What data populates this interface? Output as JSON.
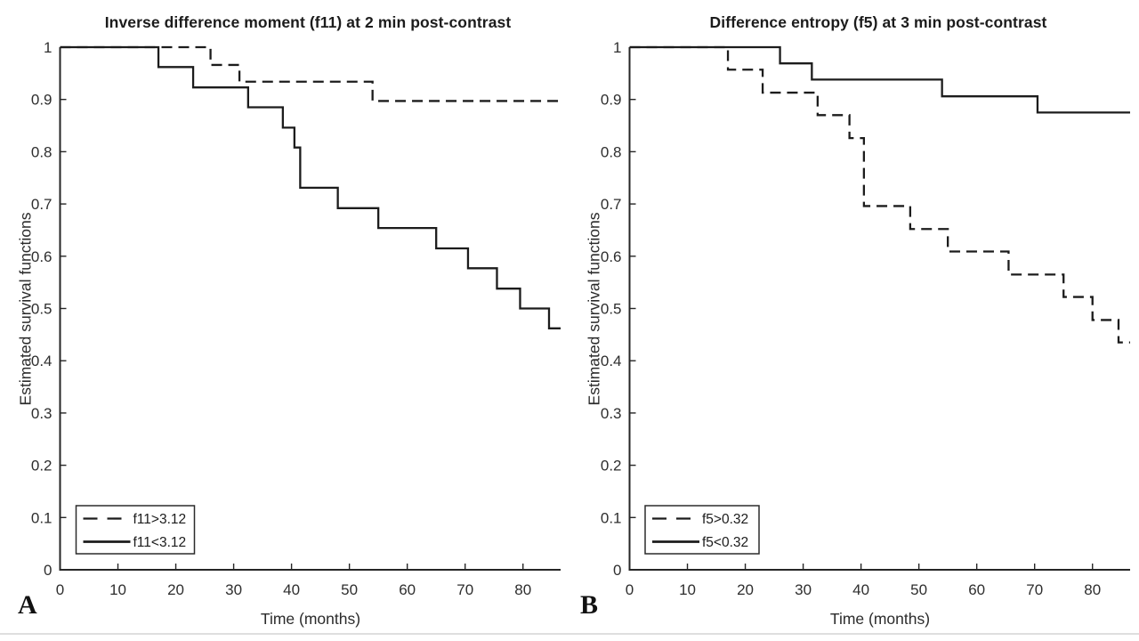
{
  "figure": {
    "background": "#ffffff",
    "line_color": "#1c1c1c",
    "axis_color": "#262626",
    "tick_label_color": "#2e2e2e",
    "legend_border_color": "#2b2b2b"
  },
  "chart_data": [
    {
      "type": "line",
      "subtype": "kaplan-meier-step",
      "panel_label": "A",
      "title": "Inverse difference moment (f11) at 2 min post-contrast",
      "xlabel": "Time (months)",
      "ylabel": "Estimated survival functions",
      "xlim": [
        0,
        86.5
      ],
      "ylim": [
        0,
        1
      ],
      "xticks": [
        0,
        10,
        20,
        30,
        40,
        50,
        60,
        70,
        80
      ],
      "yticks": [
        0,
        0.1,
        0.2,
        0.3,
        0.4,
        0.5,
        0.6,
        0.7,
        0.8,
        0.9,
        1
      ],
      "grid": false,
      "legend_position": "lower-left",
      "x_end": 86.5,
      "series": [
        {
          "name": "f11>3.12",
          "style": "dashed",
          "steps": [
            [
              0,
              1
            ],
            [
              26,
              0.966
            ],
            [
              31,
              0.934
            ],
            [
              54,
              0.897
            ]
          ]
        },
        {
          "name": "f11<3.12",
          "style": "solid",
          "steps": [
            [
              0,
              1
            ],
            [
              17,
              0.962
            ],
            [
              23,
              0.923
            ],
            [
              32.5,
              0.885
            ],
            [
              38.5,
              0.846
            ],
            [
              40.5,
              0.808
            ],
            [
              41.5,
              0.731
            ],
            [
              48,
              0.692
            ],
            [
              55,
              0.654
            ],
            [
              65,
              0.615
            ],
            [
              70.5,
              0.577
            ],
            [
              75.5,
              0.538
            ],
            [
              79.5,
              0.5
            ],
            [
              84.5,
              0.462
            ]
          ]
        }
      ]
    },
    {
      "type": "line",
      "subtype": "kaplan-meier-step",
      "panel_label": "B",
      "title": "Difference entropy (f5) at 3 min post-contrast",
      "xlabel": "Time (months)",
      "ylabel": "Estimated survival functions",
      "xlim": [
        0,
        86.5
      ],
      "ylim": [
        0,
        1
      ],
      "xticks": [
        0,
        10,
        20,
        30,
        40,
        50,
        60,
        70,
        80
      ],
      "yticks": [
        0,
        0.1,
        0.2,
        0.3,
        0.4,
        0.5,
        0.6,
        0.7,
        0.8,
        0.9,
        1
      ],
      "grid": false,
      "legend_position": "lower-left",
      "x_end": 86.5,
      "series": [
        {
          "name": "f5>0.32",
          "style": "dashed",
          "steps": [
            [
              0,
              1
            ],
            [
              17,
              0.957
            ],
            [
              23,
              0.913
            ],
            [
              32.5,
              0.87
            ],
            [
              38,
              0.826
            ],
            [
              40.5,
              0.696
            ],
            [
              48.5,
              0.652
            ],
            [
              55,
              0.609
            ],
            [
              65.5,
              0.565
            ],
            [
              75,
              0.522
            ],
            [
              80,
              0.478
            ],
            [
              84.5,
              0.435
            ]
          ]
        },
        {
          "name": "f5<0.32",
          "style": "solid",
          "steps": [
            [
              0,
              1
            ],
            [
              26,
              0.969
            ],
            [
              31.5,
              0.938
            ],
            [
              54,
              0.906
            ],
            [
              70.5,
              0.875
            ]
          ]
        }
      ]
    }
  ]
}
